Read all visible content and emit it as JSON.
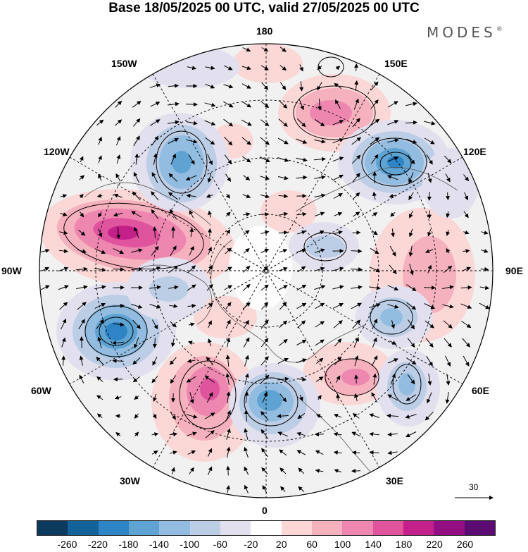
{
  "title": "Base 18/05/2025 00 UTC, valid 27/05/2025 00 UTC",
  "brand": {
    "name": "MODES",
    "mark": "®"
  },
  "longitude_labels": {
    "top": "180",
    "bottom": "0",
    "left": "90W",
    "right": "90E",
    "upper_left_1": "150W",
    "upper_left_2": "120W",
    "upper_right_1": "150E",
    "upper_right_2": "120E",
    "lower_left_1": "60W",
    "lower_left_2": "30W",
    "lower_right_1": "60E",
    "lower_right_2": "30E"
  },
  "reference_vector": {
    "value": "30"
  },
  "colorbar": {
    "colors": [
      "#0b3a5c",
      "#14629a",
      "#2e84c4",
      "#5fa3d3",
      "#93bde0",
      "#bccde6",
      "#e2e0ef",
      "#ffffff",
      "#fbd7d6",
      "#f6b1be",
      "#ee87b0",
      "#e0549e",
      "#c3208a",
      "#930d83",
      "#5b0c74"
    ],
    "tick_labels": [
      "-260",
      "-220",
      "-180",
      "-140",
      "-100",
      "-60",
      "-20",
      "20",
      "60",
      "100",
      "140",
      "180",
      "220",
      "260"
    ]
  }
}
